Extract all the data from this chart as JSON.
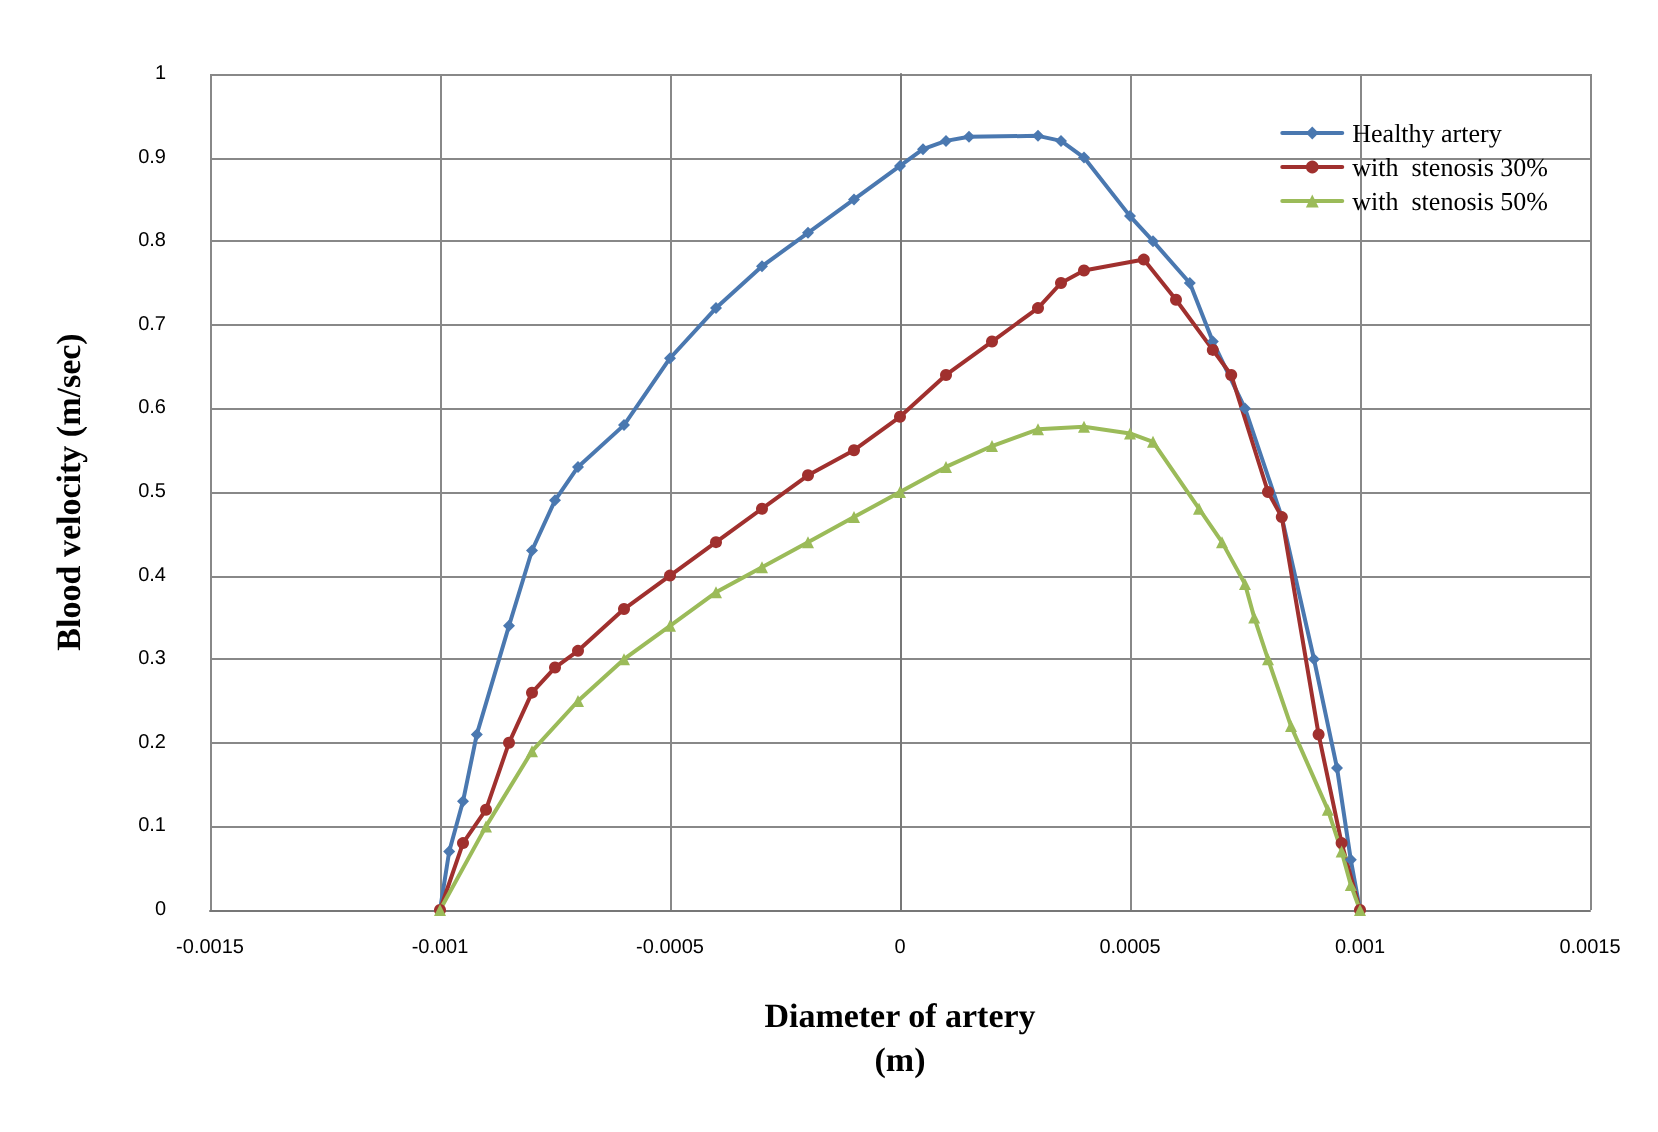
{
  "chart_data": {
    "type": "line",
    "xlabel": "Diameter of artery\n(m)",
    "ylabel": "Blood velocity (m/sec)",
    "xlim": [
      -0.0015,
      0.0015
    ],
    "xticks": [
      -0.0015,
      -0.001,
      -0.0005,
      0,
      0.0005,
      0.001,
      0.0015
    ],
    "ylim": [
      0,
      1
    ],
    "yticks": [
      0,
      0.1,
      0.2,
      0.3,
      0.4,
      0.5,
      0.6,
      0.7,
      0.8,
      0.9,
      1
    ],
    "grid": true,
    "legend": "top right",
    "series": [
      {
        "name": "Healthy artery",
        "color": "#4a78b0",
        "marker": "diamond",
        "x": [
          -0.001,
          -0.00098,
          -0.00095,
          -0.00092,
          -0.00085,
          -0.0008,
          -0.00075,
          -0.0007,
          -0.0006,
          -0.0005,
          -0.0004,
          -0.0003,
          -0.0002,
          -0.0001,
          0,
          5e-05,
          0.0001,
          0.00015,
          0.0003,
          0.00035,
          0.0004,
          0.0005,
          0.00055,
          0.00063,
          0.00068,
          0.00075,
          0.00083,
          0.0009,
          0.00095,
          0.00098,
          0.001
        ],
        "values": [
          0,
          0.07,
          0.13,
          0.21,
          0.34,
          0.43,
          0.49,
          0.53,
          0.58,
          0.66,
          0.72,
          0.77,
          0.81,
          0.85,
          0.89,
          0.91,
          0.92,
          0.925,
          0.926,
          0.92,
          0.9,
          0.83,
          0.8,
          0.75,
          0.68,
          0.6,
          0.47,
          0.3,
          0.17,
          0.06,
          0
        ]
      },
      {
        "name": "with  stenosis 30%",
        "color": "#a0302e",
        "marker": "circle",
        "x": [
          -0.001,
          -0.00095,
          -0.0009,
          -0.00085,
          -0.0008,
          -0.00075,
          -0.0007,
          -0.0006,
          -0.0005,
          -0.0004,
          -0.0003,
          -0.0002,
          -0.0001,
          0,
          0.0001,
          0.0002,
          0.0003,
          0.00035,
          0.0004,
          0.00053,
          0.0006,
          0.00068,
          0.00072,
          0.0008,
          0.00083,
          0.00091,
          0.00096,
          0.001
        ],
        "values": [
          0,
          0.08,
          0.12,
          0.2,
          0.26,
          0.29,
          0.31,
          0.36,
          0.4,
          0.44,
          0.48,
          0.52,
          0.55,
          0.59,
          0.64,
          0.68,
          0.72,
          0.75,
          0.765,
          0.778,
          0.73,
          0.67,
          0.64,
          0.5,
          0.47,
          0.21,
          0.08,
          0
        ]
      },
      {
        "name": "with  stenosis 50%",
        "color": "#9bbb59",
        "marker": "triangle",
        "x": [
          -0.001,
          -0.0009,
          -0.0008,
          -0.0007,
          -0.0006,
          -0.0005,
          -0.0004,
          -0.0003,
          -0.0002,
          -0.0001,
          0,
          0.0001,
          0.0002,
          0.0003,
          0.0004,
          0.0005,
          0.00055,
          0.00065,
          0.0007,
          0.00075,
          0.00077,
          0.0008,
          0.00085,
          0.00093,
          0.00096,
          0.00098,
          0.001
        ],
        "values": [
          0,
          0.1,
          0.19,
          0.25,
          0.3,
          0.34,
          0.38,
          0.41,
          0.44,
          0.47,
          0.5,
          0.53,
          0.555,
          0.575,
          0.578,
          0.57,
          0.56,
          0.48,
          0.44,
          0.39,
          0.35,
          0.3,
          0.22,
          0.12,
          0.07,
          0.03,
          0
        ]
      }
    ]
  }
}
